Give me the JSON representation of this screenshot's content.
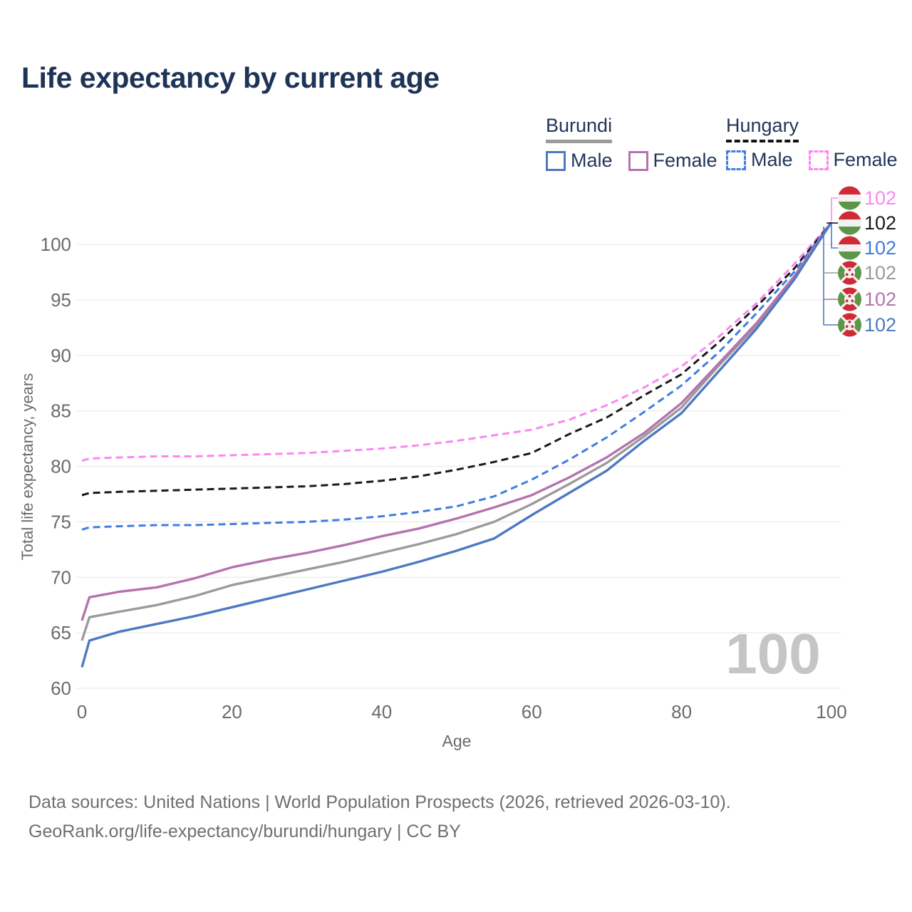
{
  "title": "Life expectancy by current age",
  "legend": {
    "groups": [
      {
        "label": "Burundi",
        "line_style": "solid",
        "underline_color": "#9b9b9b",
        "items": [
          {
            "label": "Male",
            "color": "#4e79c2"
          },
          {
            "label": "Female",
            "color": "#b573ae"
          }
        ]
      },
      {
        "label": "Hungary",
        "line_style": "dashed",
        "underline_color": "#141414",
        "items": [
          {
            "label": "Male",
            "color": "#3f7de0"
          },
          {
            "label": "Female",
            "color": "#fb87f2"
          }
        ]
      }
    ]
  },
  "chart_data": {
    "type": "line",
    "title": "Life expectancy by current age",
    "xlabel": "Age",
    "ylabel": "Total life expectancy, years",
    "xticks": [
      0,
      20,
      40,
      60,
      80,
      100
    ],
    "yticks": [
      60,
      65,
      70,
      75,
      80,
      85,
      90,
      95,
      100
    ],
    "xlim": [
      0,
      100
    ],
    "ylim": [
      58.5,
      103.5
    ],
    "grid": "horizontal",
    "watermark": "100",
    "x": [
      0,
      1,
      5,
      10,
      15,
      20,
      25,
      30,
      35,
      40,
      45,
      50,
      55,
      60,
      65,
      70,
      75,
      80,
      85,
      90,
      95,
      100
    ],
    "series": [
      {
        "name": "Hungary Female",
        "country": "Hungary",
        "sex": "Female",
        "dashed": true,
        "color": "#fb87f2",
        "flag": "hungary-flag-icon",
        "end_label": "102",
        "values": [
          80.5,
          80.7,
          80.8,
          80.9,
          80.9,
          81.0,
          81.1,
          81.2,
          81.4,
          81.6,
          81.9,
          82.3,
          82.8,
          83.3,
          84.2,
          85.5,
          87.1,
          89.0,
          91.7,
          94.7,
          98.2,
          102
        ]
      },
      {
        "name": "Hungary",
        "country": "Hungary",
        "sex": "Both",
        "dashed": true,
        "color": "#1a1a1a",
        "flag": "hungary-flag-icon",
        "end_label": "102",
        "values": [
          77.4,
          77.6,
          77.7,
          77.8,
          77.9,
          78.0,
          78.1,
          78.2,
          78.4,
          78.7,
          79.1,
          79.7,
          80.4,
          81.2,
          82.9,
          84.4,
          86.4,
          88.3,
          91.2,
          94.4,
          97.8,
          102
        ]
      },
      {
        "name": "Hungary Male",
        "country": "Hungary",
        "sex": "Male",
        "dashed": true,
        "color": "#3f7de0",
        "flag": "hungary-flag-icon",
        "end_label": "102",
        "values": [
          74.3,
          74.5,
          74.6,
          74.7,
          74.7,
          74.8,
          74.9,
          75.0,
          75.2,
          75.5,
          75.9,
          76.4,
          77.3,
          78.8,
          80.6,
          82.6,
          84.9,
          87.3,
          90.3,
          93.8,
          97.5,
          102
        ]
      },
      {
        "name": "Burundi",
        "country": "Burundi",
        "sex": "Both",
        "dashed": false,
        "color": "#9b9b9b",
        "flag": "burundi-flag-icon",
        "end_label": "102",
        "values": [
          64.3,
          66.4,
          66.9,
          67.5,
          68.3,
          69.3,
          70.0,
          70.7,
          71.4,
          72.2,
          73.0,
          73.9,
          75.0,
          76.6,
          78.4,
          80.3,
          82.7,
          85.3,
          89.1,
          92.7,
          97.0,
          102
        ]
      },
      {
        "name": "Burundi Female",
        "country": "Burundi",
        "sex": "Female",
        "dashed": false,
        "color": "#b573ae",
        "flag": "burundi-flag-icon",
        "end_label": "102",
        "values": [
          66.1,
          68.2,
          68.7,
          69.1,
          69.9,
          70.9,
          71.6,
          72.2,
          72.9,
          73.7,
          74.4,
          75.3,
          76.3,
          77.4,
          79.0,
          80.8,
          83.0,
          85.7,
          89.3,
          92.9,
          97.1,
          102
        ]
      },
      {
        "name": "Burundi Male",
        "country": "Burundi",
        "sex": "Male",
        "dashed": false,
        "color": "#4e79c2",
        "flag": "burundi-flag-icon",
        "end_label": "102",
        "values": [
          61.9,
          64.3,
          65.1,
          65.8,
          66.5,
          67.3,
          68.1,
          68.9,
          69.7,
          70.5,
          71.4,
          72.4,
          73.5,
          75.6,
          77.6,
          79.6,
          82.3,
          84.8,
          88.6,
          92.4,
          96.8,
          102
        ]
      }
    ]
  },
  "colors": {
    "title": "#1d3456",
    "axis_text": "#6b6b6b",
    "grid": "#ebebeb",
    "watermark": "#c5c5c5",
    "footer": "#6f6f6f",
    "flag_red": "#ce2b37",
    "flag_green": "#5d9648",
    "flag_white": "#f2f2f2"
  },
  "footer": {
    "line1": "Data sources: United Nations | World Population Prospects (2026, retrieved 2026-03-10).",
    "line2": "GeoRank.org/life-expectancy/burundi/hungary | CC BY"
  }
}
